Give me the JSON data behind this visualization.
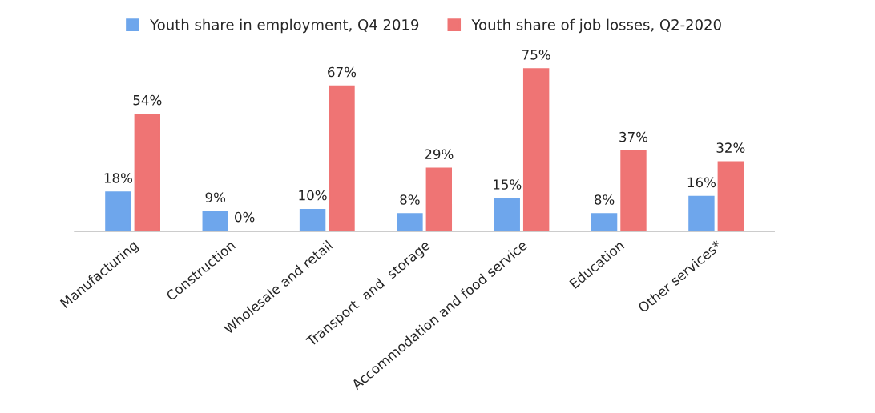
{
  "chart_data": {
    "type": "bar",
    "categories": [
      "Manufacturing",
      "Construction",
      "Wholesale and retail",
      "Transport  and  storage",
      "Accommodation and food service",
      "Education",
      "Other services*"
    ],
    "series": [
      {
        "name": "Youth share in employment, Q4 2019",
        "color": "#6ea6ec",
        "values": [
          18,
          9,
          10,
          8,
          15,
          8,
          16
        ],
        "value_labels": [
          "18%",
          "9%",
          "10%",
          "8%",
          "15%",
          "8%",
          "16%"
        ]
      },
      {
        "name": "Youth share of job losses, Q2-2020",
        "color": "#ef7474",
        "values": [
          54,
          0,
          67,
          29,
          75,
          37,
          32
        ],
        "value_labels": [
          "54%",
          "0%",
          "67%",
          "29%",
          "75%",
          "37%",
          "32%"
        ]
      }
    ],
    "legend": "top",
    "grid": false
  }
}
